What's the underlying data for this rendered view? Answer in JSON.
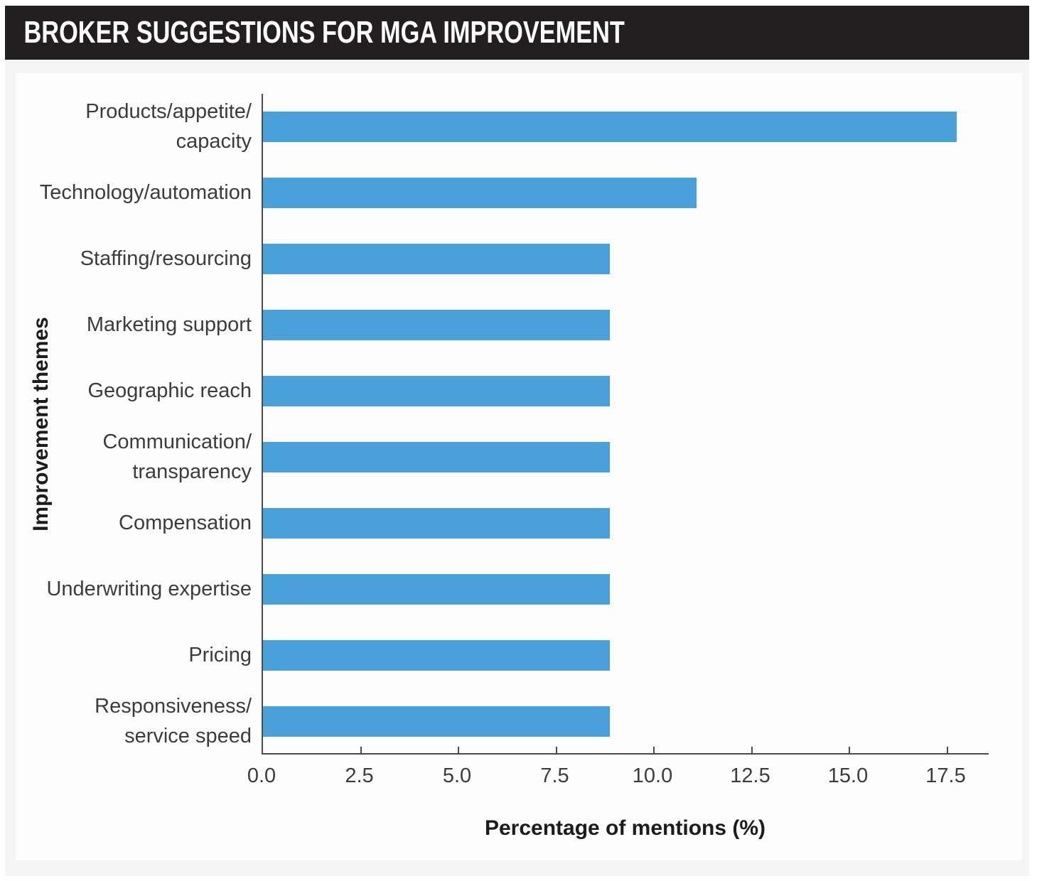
{
  "header": {
    "title": "BROKER SUGGESTIONS FOR MGA IMPROVEMENT"
  },
  "colors": {
    "header_bg": "#231F20",
    "header_text": "#FFFFFF",
    "bar": "#4AA0D9",
    "panel_bg": "#F5F5F6",
    "card_bg": "#FDFDFD",
    "axis": "#4A4A4A",
    "label_text": "#3C3C3C"
  },
  "chart_data": {
    "type": "bar",
    "orientation": "horizontal",
    "title": "BROKER SUGGESTIONS FOR MGA IMPROVEMENT",
    "xlabel": "Percentage of mentions (%)",
    "ylabel": "Improvement themes",
    "categories": [
      "Products/appetite/\ncapacity",
      "Technology/automation",
      "Staffing/resourcing",
      "Marketing support",
      "Geographic reach",
      "Communication/\ntransparency",
      "Compensation",
      "Underwriting expertise",
      "Pricing",
      "Responsiveness/\nservice speed"
    ],
    "values": [
      17.78,
      11.11,
      8.89,
      8.89,
      8.89,
      8.89,
      8.89,
      8.89,
      8.89,
      8.89
    ],
    "xticks": [
      0.0,
      2.5,
      5.0,
      7.5,
      10.0,
      12.5,
      15.0,
      17.5
    ],
    "xtick_labels": [
      "0.0",
      "2.5",
      "5.0",
      "7.5",
      "10.0",
      "12.5",
      "15.0",
      "17.5"
    ],
    "xlim": [
      0,
      18.6
    ],
    "grid": false,
    "legend": "none",
    "bar_color": "#4AA0D9"
  }
}
